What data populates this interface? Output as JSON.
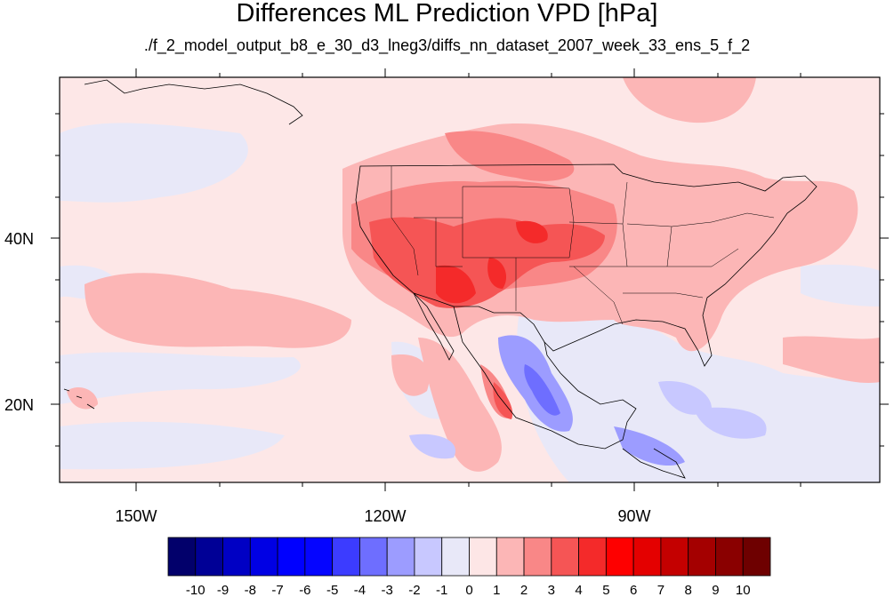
{
  "title": "Differences ML Prediction VPD [hPa]",
  "subtitle": "./f_2_model_output_b8_e_30_d3_lneg3/diffs_nn_dataset_2007_week_33_ens_5_f_2",
  "lon_labels": [
    "150W",
    "120W",
    "90W"
  ],
  "lat_labels": [
    "40N",
    "20N"
  ],
  "colorbar": {
    "labels": [
      "-10",
      "-9",
      "-8",
      "-7",
      "-6",
      "-5",
      "-4",
      "-3",
      "-2",
      "-1",
      "0",
      "1",
      "2",
      "3",
      "4",
      "5",
      "6",
      "7",
      "8",
      "9",
      "10"
    ],
    "colors": [
      "#02006b",
      "#000096",
      "#0000c4",
      "#0000e4",
      "#0000ff",
      "#0505ff",
      "#3c3cff",
      "#6e6eff",
      "#9c9cff",
      "#c8c8ff",
      "#e8e8f8",
      "#fde6e6",
      "#fcb6b6",
      "#f98787",
      "#f55555",
      "#f42a2a",
      "#fe0000",
      "#e40000",
      "#c40000",
      "#a40000",
      "#8a0000",
      "#6e0000"
    ]
  },
  "colors": {
    "background_field": "#fde7e7",
    "frame": "#000000"
  }
}
